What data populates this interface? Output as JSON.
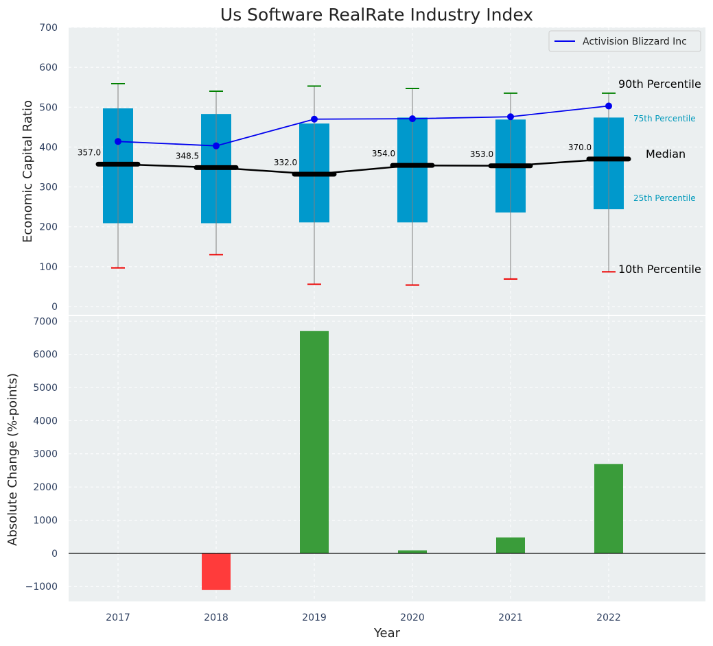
{
  "chart_data": [
    {
      "type": "box",
      "title": "Us Software RealRate Industry Index",
      "ylabel": "Economic Capital Ratio",
      "ylim": [
        0,
        700
      ],
      "yticks": [
        0,
        100,
        200,
        300,
        400,
        500,
        600,
        700
      ],
      "grid": true,
      "categories": [
        "2017",
        "2018",
        "2019",
        "2020",
        "2021",
        "2022"
      ],
      "p10": [
        97,
        130,
        56,
        54,
        69,
        87
      ],
      "p25": [
        209,
        209,
        211,
        211,
        236,
        244
      ],
      "median": [
        357.0,
        348.5,
        332.0,
        354.0,
        353.0,
        370.0
      ],
      "median_labels": [
        "357.0",
        "348.5",
        "332.0",
        "354.0",
        "353.0",
        "370.0"
      ],
      "p75": [
        497,
        483,
        459,
        474,
        469,
        474
      ],
      "p90": [
        559,
        540,
        553,
        547,
        535,
        535
      ],
      "series": [
        {
          "name": "Activision Blizzard Inc",
          "values": [
            414,
            403,
            470,
            471,
            476,
            503
          ]
        }
      ],
      "legend": "top-right",
      "annotations": {
        "p90": "90th Percentile",
        "p75": "75th Percentile",
        "median": "Median",
        "p25": "25th Percentile",
        "p10": "10th Percentile"
      },
      "colors": {
        "box": "#0099cc",
        "median": "#000000",
        "series": "#0000ee",
        "p90_cap": "#008000",
        "p10_cap": "#ee0000",
        "whisker": "#808080",
        "annot_small": "#0099bb",
        "background": "#ebeff0"
      }
    },
    {
      "type": "bar",
      "xlabel": "Year",
      "ylabel": "Absolute Change (%-points)",
      "ylim": [
        -1450,
        7150
      ],
      "yticks": [
        -1000,
        0,
        1000,
        2000,
        3000,
        4000,
        5000,
        6000,
        7000
      ],
      "ytick_labels": [
        "−1000",
        "0",
        "1000",
        "2000",
        "3000",
        "4000",
        "5000",
        "6000",
        "7000"
      ],
      "grid": true,
      "categories": [
        "2017",
        "2018",
        "2019",
        "2020",
        "2021",
        "2022"
      ],
      "values": [
        0,
        -1100,
        6700,
        90,
        480,
        2690
      ],
      "colors": {
        "positive": "#3a9c3a",
        "negative": "#ff3b3b"
      }
    }
  ]
}
